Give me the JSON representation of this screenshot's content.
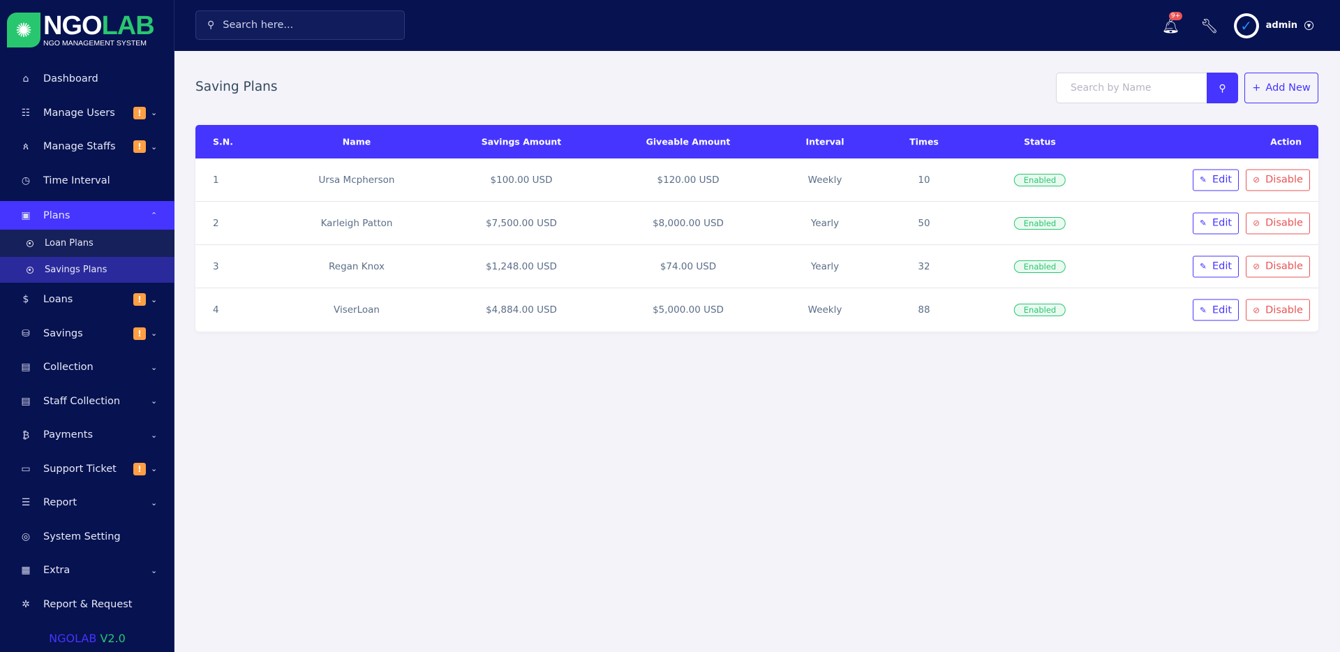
{
  "brand": {
    "name_white": "NGO",
    "name_green": "LAB",
    "subtitle": "NGO MANAGEMENT SYSTEM",
    "footer_a": "NGOLAB",
    "footer_b": "V2.0",
    "accent": "#4634ff",
    "sidebar_bg": "#071251"
  },
  "sidebar": {
    "items": [
      {
        "label": "Dashboard",
        "icon": "home-icon",
        "glyph": "⌂",
        "badge": null,
        "chevron": null
      },
      {
        "label": "Manage Users",
        "icon": "users-icon",
        "glyph": "☷",
        "badge": "!",
        "chevron": "⌄"
      },
      {
        "label": "Manage Staffs",
        "icon": "staff-icon",
        "glyph": "ጰ",
        "badge": "!",
        "chevron": "⌄"
      },
      {
        "label": "Time Interval",
        "icon": "clock-icon",
        "glyph": "◷",
        "badge": null,
        "chevron": null
      },
      {
        "label": "Plans",
        "icon": "plans-icon",
        "glyph": "▣",
        "badge": null,
        "chevron": "⌃",
        "active": true,
        "children": [
          {
            "label": "Loan Plans"
          },
          {
            "label": "Savings Plans",
            "active": true
          }
        ]
      },
      {
        "label": "Loans",
        "icon": "loan-icon",
        "glyph": "$",
        "badge": "!",
        "chevron": "⌄"
      },
      {
        "label": "Savings",
        "icon": "coins-icon",
        "glyph": "⛁",
        "badge": "!",
        "chevron": "⌄"
      },
      {
        "label": "Collection",
        "icon": "calculator-icon",
        "glyph": "▤",
        "badge": null,
        "chevron": "⌄"
      },
      {
        "label": "Staff Collection",
        "icon": "calculator-icon",
        "glyph": "▤",
        "badge": null,
        "chevron": "⌄"
      },
      {
        "label": "Payments",
        "icon": "invoice-icon",
        "glyph": "₿",
        "badge": null,
        "chevron": "⌄"
      },
      {
        "label": "Support Ticket",
        "icon": "ticket-icon",
        "glyph": "▭",
        "badge": "!",
        "chevron": "⌄"
      },
      {
        "label": "Report",
        "icon": "list-icon",
        "glyph": "☰",
        "badge": null,
        "chevron": "⌄"
      },
      {
        "label": "System Setting",
        "icon": "lifebuoy-icon",
        "glyph": "◎",
        "badge": null,
        "chevron": null
      },
      {
        "label": "Extra",
        "icon": "server-icon",
        "glyph": "▦",
        "badge": null,
        "chevron": "⌄"
      },
      {
        "label": "Report & Request",
        "icon": "bug-icon",
        "glyph": "✲",
        "badge": null,
        "chevron": null
      }
    ]
  },
  "topbar": {
    "search_placeholder": "Search here...",
    "notification_count": "9+",
    "user": "admin"
  },
  "page": {
    "title": "Saving Plans",
    "search_placeholder": "Search by Name",
    "add_new": "Add New"
  },
  "table": {
    "columns": [
      "S.N.",
      "Name",
      "Savings Amount",
      "Giveable Amount",
      "Interval",
      "Times",
      "Status",
      "Action"
    ],
    "rows": [
      {
        "sn": "1",
        "name": "Ursa Mcpherson",
        "savings": "$100.00 USD",
        "giveable": "$120.00 USD",
        "interval": "Weekly",
        "times": "10",
        "status": "Enabled"
      },
      {
        "sn": "2",
        "name": "Karleigh Patton",
        "savings": "$7,500.00 USD",
        "giveable": "$8,000.00 USD",
        "interval": "Yearly",
        "times": "50",
        "status": "Enabled"
      },
      {
        "sn": "3",
        "name": "Regan Knox",
        "savings": "$1,248.00 USD",
        "giveable": "$74.00 USD",
        "interval": "Yearly",
        "times": "32",
        "status": "Enabled"
      },
      {
        "sn": "4",
        "name": "ViserLoan",
        "savings": "$4,884.00 USD",
        "giveable": "$5,000.00 USD",
        "interval": "Weekly",
        "times": "88",
        "status": "Enabled"
      }
    ],
    "edit_label": "Edit",
    "disable_label": "Disable"
  }
}
